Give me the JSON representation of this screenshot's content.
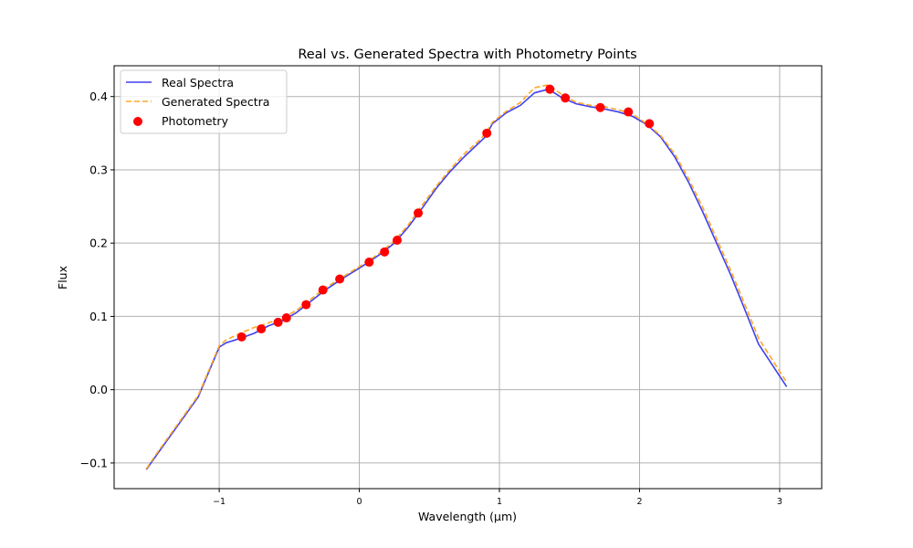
{
  "chart_data": {
    "type": "line",
    "title": "Real vs. Generated Spectra with Photometry Points",
    "xlabel": "Wavelength (μm)",
    "ylabel": "Flux",
    "xlim": [
      -1.75,
      3.3
    ],
    "ylim": [
      -0.135,
      0.442
    ],
    "xticks": [
      -1,
      0,
      1,
      2,
      3
    ],
    "xtick_labels": [
      "−1",
      "0",
      "1",
      "2",
      "3"
    ],
    "yticks": [
      -0.1,
      0.0,
      0.1,
      0.2,
      0.3,
      0.4
    ],
    "ytick_labels": [
      "−0.1",
      "0.0",
      "0.1",
      "0.2",
      "0.3",
      "0.4"
    ],
    "grid": true,
    "legend_position": "top-left",
    "series": [
      {
        "name": "Real Spectra",
        "style": "solid",
        "color": "#4040ee",
        "x": [
          -1.52,
          -1.45,
          -1.3,
          -1.15,
          -1.0,
          -0.95,
          -0.85,
          -0.75,
          -0.65,
          -0.55,
          -0.45,
          -0.35,
          -0.25,
          -0.15,
          -0.05,
          0.05,
          0.15,
          0.25,
          0.35,
          0.45,
          0.55,
          0.65,
          0.75,
          0.85,
          0.9,
          0.95,
          1.05,
          1.15,
          1.25,
          1.35,
          1.45,
          1.55,
          1.65,
          1.75,
          1.85,
          1.95,
          2.05,
          2.15,
          2.25,
          2.35,
          2.45,
          2.55,
          2.65,
          2.75,
          2.85,
          2.95,
          3.05
        ],
        "y": [
          -0.109,
          -0.09,
          -0.05,
          -0.01,
          0.058,
          0.064,
          0.07,
          0.077,
          0.087,
          0.094,
          0.105,
          0.12,
          0.135,
          0.148,
          0.16,
          0.172,
          0.185,
          0.2,
          0.222,
          0.248,
          0.275,
          0.298,
          0.318,
          0.336,
          0.345,
          0.363,
          0.378,
          0.388,
          0.405,
          0.41,
          0.398,
          0.39,
          0.386,
          0.383,
          0.379,
          0.373,
          0.362,
          0.345,
          0.318,
          0.283,
          0.243,
          0.2,
          0.157,
          0.11,
          0.062,
          0.033,
          0.004
        ]
      },
      {
        "name": "Generated Spectra",
        "style": "dashed",
        "color": "#ffa726",
        "x": [
          -1.52,
          -1.45,
          -1.3,
          -1.15,
          -1.0,
          -0.95,
          -0.85,
          -0.75,
          -0.65,
          -0.55,
          -0.45,
          -0.35,
          -0.25,
          -0.15,
          -0.05,
          0.05,
          0.15,
          0.25,
          0.35,
          0.45,
          0.55,
          0.65,
          0.75,
          0.85,
          0.9,
          0.95,
          1.05,
          1.15,
          1.25,
          1.35,
          1.45,
          1.55,
          1.65,
          1.75,
          1.85,
          1.95,
          2.05,
          2.15,
          2.25,
          2.35,
          2.45,
          2.55,
          2.65,
          2.75,
          2.85,
          2.95,
          3.05
        ],
        "y": [
          -0.108,
          -0.088,
          -0.048,
          -0.008,
          0.06,
          0.068,
          0.077,
          0.085,
          0.091,
          0.098,
          0.108,
          0.123,
          0.138,
          0.15,
          0.162,
          0.174,
          0.187,
          0.203,
          0.225,
          0.252,
          0.278,
          0.301,
          0.322,
          0.339,
          0.349,
          0.365,
          0.38,
          0.392,
          0.412,
          0.416,
          0.402,
          0.392,
          0.388,
          0.386,
          0.382,
          0.376,
          0.363,
          0.347,
          0.322,
          0.288,
          0.249,
          0.206,
          0.163,
          0.117,
          0.07,
          0.04,
          0.01
        ]
      }
    ],
    "scatter": {
      "name": "Photometry",
      "color": "#ff0000",
      "x": [
        -0.84,
        -0.7,
        -0.58,
        -0.52,
        -0.38,
        -0.26,
        -0.14,
        0.07,
        0.18,
        0.27,
        0.42,
        0.91,
        1.36,
        1.47,
        1.72,
        1.92,
        2.07
      ],
      "y": [
        0.072,
        0.083,
        0.092,
        0.098,
        0.116,
        0.136,
        0.151,
        0.174,
        0.188,
        0.204,
        0.241,
        0.35,
        0.41,
        0.398,
        0.385,
        0.379,
        0.363
      ]
    }
  }
}
